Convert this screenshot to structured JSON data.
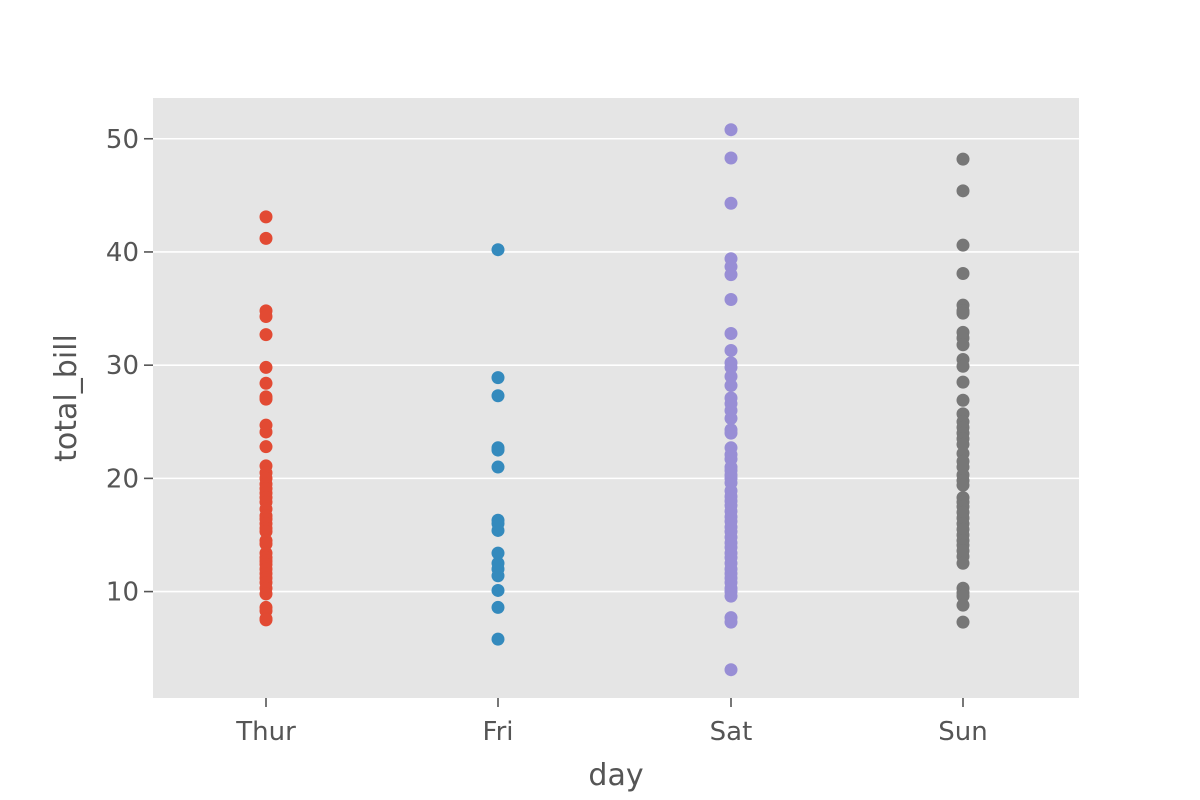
{
  "chart_data": {
    "type": "scatter",
    "xlabel": "day",
    "ylabel": "total_bill",
    "categories": [
      "Thur",
      "Fri",
      "Sat",
      "Sun"
    ],
    "ylim": [
      0.6,
      53.6
    ],
    "yticks": [
      10,
      20,
      30,
      40,
      50
    ],
    "grid": true,
    "legend": "none",
    "colors": {
      "plot_background": "#e5e5e5",
      "grid": "#ffffff",
      "text": "#555555"
    },
    "series": [
      {
        "category": "Thur",
        "color": "#e24a33",
        "values": [
          43.1,
          41.2,
          34.8,
          34.3,
          32.7,
          29.8,
          28.4,
          27.2,
          27.0,
          24.7,
          24.1,
          22.8,
          21.1,
          20.5,
          20.0,
          19.5,
          19.1,
          18.7,
          18.3,
          17.9,
          17.3,
          16.7,
          16.4,
          16.0,
          15.6,
          15.3,
          14.5,
          14.2,
          13.4,
          13.0,
          12.7,
          12.4,
          12.0,
          11.6,
          11.2,
          10.8,
          10.3,
          9.8,
          8.6,
          8.3,
          7.6,
          7.5
        ]
      },
      {
        "category": "Fri",
        "color": "#348abd",
        "values": [
          40.2,
          28.9,
          27.3,
          22.7,
          22.5,
          21.0,
          16.3,
          16.0,
          15.4,
          13.4,
          12.5,
          12.0,
          11.4,
          10.1,
          8.6,
          5.8
        ]
      },
      {
        "category": "Sat",
        "color": "#988ed5",
        "values": [
          50.8,
          48.3,
          44.3,
          39.4,
          38.7,
          38.0,
          35.8,
          32.8,
          31.3,
          30.2,
          29.8,
          29.0,
          28.2,
          27.1,
          26.6,
          26.0,
          25.3,
          24.3,
          24.0,
          22.7,
          22.1,
          21.7,
          21.0,
          20.7,
          20.3,
          20.0,
          19.6,
          18.9,
          18.4,
          18.0,
          17.6,
          17.1,
          16.6,
          16.2,
          15.7,
          15.3,
          14.8,
          14.3,
          13.9,
          13.4,
          13.0,
          12.5,
          12.0,
          11.6,
          11.2,
          10.8,
          10.3,
          10.0,
          9.6,
          7.7,
          7.3,
          3.1
        ]
      },
      {
        "category": "Sun",
        "color": "#777777",
        "values": [
          48.2,
          45.4,
          40.6,
          38.1,
          35.3,
          34.8,
          34.6,
          32.9,
          32.4,
          31.8,
          30.5,
          29.9,
          28.5,
          26.9,
          25.7,
          25.0,
          24.5,
          24.0,
          23.5,
          23.0,
          22.2,
          21.5,
          21.0,
          20.3,
          19.8,
          19.4,
          18.3,
          17.9,
          17.5,
          17.0,
          16.5,
          16.0,
          15.5,
          15.0,
          14.5,
          14.1,
          13.6,
          13.1,
          12.5,
          10.3,
          9.9,
          9.6,
          8.8,
          7.3
        ]
      }
    ]
  }
}
